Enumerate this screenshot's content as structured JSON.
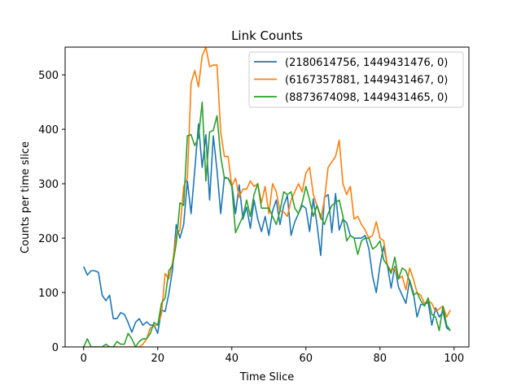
{
  "chart_data": {
    "type": "line",
    "title": "Link Counts",
    "xlabel": "Time Slice",
    "ylabel": "Counts per time slice",
    "xlim": [
      -5,
      104
    ],
    "ylim": [
      0,
      551
    ],
    "xticks": [
      0,
      20,
      40,
      60,
      80,
      100
    ],
    "yticks": [
      0,
      100,
      200,
      300,
      400,
      500
    ],
    "grid": false,
    "legend_position": "top-right",
    "series": [
      {
        "name": "(2180614756, 1449431476, 0)",
        "color": "#1f77b4",
        "values": [
          148,
          132,
          140,
          140,
          137,
          95,
          85,
          95,
          52,
          52,
          63,
          60,
          45,
          27,
          45,
          52,
          40,
          46,
          40,
          40,
          25,
          68,
          65,
          98,
          142,
          225,
          200,
          225,
          305,
          245,
          325,
          410,
          330,
          390,
          270,
          388,
          325,
          245,
          312,
          310,
          300,
          245,
          298,
          235,
          257,
          218,
          270,
          235,
          212,
          240,
          205,
          250,
          270,
          225,
          260,
          278,
          205,
          230,
          245,
          260,
          255,
          212,
          272,
          225,
          168,
          275,
          280,
          210,
          282,
          215,
          235,
          228,
          205,
          200,
          200,
          200,
          205,
          180,
          130,
          100,
          150,
          185,
          150,
          108,
          148,
          110,
          95,
          80,
          123,
          100,
          55,
          78,
          78,
          82,
          40,
          72,
          55,
          65,
          35,
          30
        ]
      },
      {
        "name": "(6167357881, 1449431467, 0)",
        "color": "#ff7f0e",
        "values": [
          0,
          0,
          0,
          0,
          0,
          0,
          0,
          0,
          0,
          0,
          0,
          0,
          0,
          0,
          0,
          0,
          5,
          15,
          35,
          38,
          42,
          60,
          135,
          125,
          155,
          205,
          215,
          295,
          310,
          485,
          508,
          478,
          535,
          551,
          515,
          518,
          518,
          395,
          350,
          350,
          295,
          310,
          275,
          290,
          290,
          305,
          295,
          300,
          265,
          295,
          245,
          300,
          285,
          250,
          248,
          240,
          270,
          285,
          300,
          285,
          320,
          330,
          280,
          260,
          235,
          270,
          330,
          340,
          350,
          380,
          300,
          280,
          295,
          235,
          240,
          225,
          215,
          200,
          205,
          230,
          200,
          195,
          150,
          140,
          145,
          125,
          130,
          105,
          145,
          125,
          100,
          95,
          80,
          85,
          80,
          65,
          70,
          75,
          55,
          68
        ]
      },
      {
        "name": "(8873674098, 1449431465, 0)",
        "color": "#2ca02c",
        "values": [
          0,
          15,
          0,
          0,
          0,
          0,
          5,
          0,
          0,
          10,
          5,
          5,
          25,
          15,
          0,
          10,
          15,
          15,
          25,
          45,
          40,
          80,
          90,
          140,
          150,
          190,
          265,
          260,
          388,
          390,
          370,
          385,
          450,
          305,
          395,
          398,
          425,
          350,
          310,
          310,
          295,
          210,
          225,
          240,
          270,
          240,
          280,
          300,
          255,
          255,
          255,
          240,
          225,
          250,
          285,
          280,
          285,
          255,
          245,
          265,
          295,
          270,
          240,
          260,
          240,
          225,
          245,
          260,
          265,
          270,
          240,
          195,
          205,
          200,
          170,
          195,
          200,
          200,
          180,
          185,
          195,
          160,
          150,
          135,
          165,
          125,
          145,
          140,
          120,
          95,
          100,
          85,
          75,
          90,
          60,
          55,
          30,
          75,
          40,
          30
        ]
      }
    ]
  }
}
